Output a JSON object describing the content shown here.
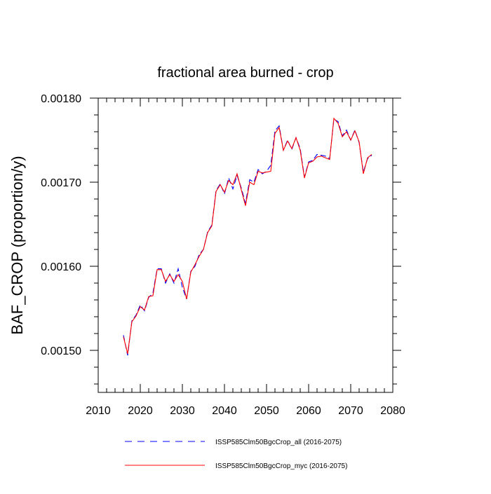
{
  "chart_data": {
    "type": "line",
    "title": "fractional area burned - crop",
    "ylabel": "BAF_CROP  (proportion/y)",
    "xlabel": "",
    "xlim": [
      2010,
      2080
    ],
    "ylim": [
      0.00145,
      0.0018
    ],
    "x_ticks": [
      2010,
      2020,
      2030,
      2040,
      2050,
      2060,
      2070,
      2080
    ],
    "x_tick_labels": [
      "2010",
      "2020",
      "2030",
      "2040",
      "2050",
      "2060",
      "2070",
      "2080"
    ],
    "y_ticks": [
      0.0015,
      0.0016,
      0.0017,
      0.0018
    ],
    "y_tick_labels": [
      "0.00150",
      "0.00160",
      "0.00170",
      "0.00180"
    ],
    "grid": false,
    "legend_position": "bottom",
    "x": [
      2016,
      2017,
      2018,
      2019,
      2020,
      2021,
      2022,
      2023,
      2024,
      2025,
      2026,
      2027,
      2028,
      2029,
      2030,
      2031,
      2032,
      2033,
      2034,
      2035,
      2036,
      2037,
      2038,
      2039,
      2040,
      2041,
      2042,
      2043,
      2044,
      2045,
      2046,
      2047,
      2048,
      2049,
      2050,
      2051,
      2052,
      2053,
      2054,
      2055,
      2056,
      2057,
      2058,
      2059,
      2060,
      2061,
      2062,
      2063,
      2064,
      2065,
      2066,
      2067,
      2068,
      2069,
      2070,
      2071,
      2072,
      2073,
      2074,
      2075
    ],
    "series": [
      {
        "name": "ISSP585Clm50BgcCrop_all (2016-2075)",
        "color": "#0000ff",
        "dash": "dashed",
        "values": [
          0.001518,
          0.001494,
          0.001535,
          0.001542,
          0.001554,
          0.001547,
          0.001563,
          0.001568,
          0.001597,
          0.001597,
          0.00158,
          0.001591,
          0.00158,
          0.001597,
          0.001575,
          0.001561,
          0.001594,
          0.0016,
          0.001614,
          0.00162,
          0.001641,
          0.001649,
          0.00169,
          0.001698,
          0.001686,
          0.001705,
          0.001692,
          0.001708,
          0.001693,
          0.001675,
          0.001703,
          0.0017,
          0.001715,
          0.00171,
          0.001713,
          0.00172,
          0.001761,
          0.001767,
          0.001738,
          0.00175,
          0.001739,
          0.001753,
          0.00174,
          0.001706,
          0.001724,
          0.001726,
          0.001733,
          0.001732,
          0.001731,
          0.001728,
          0.001775,
          0.001772,
          0.001755,
          0.001762,
          0.00175,
          0.001762,
          0.001747,
          0.001712,
          0.001728,
          0.001732
        ]
      },
      {
        "name": "ISSP585Clm50BgcCrop_myc (2016-2075)",
        "color": "#ff0000",
        "dash": "solid",
        "values": [
          0.001516,
          0.001496,
          0.001534,
          0.001541,
          0.001552,
          0.001548,
          0.001564,
          0.001565,
          0.001596,
          0.001596,
          0.001582,
          0.00159,
          0.001582,
          0.00159,
          0.001582,
          0.001561,
          0.001593,
          0.001602,
          0.001612,
          0.00162,
          0.00164,
          0.001648,
          0.001689,
          0.001697,
          0.001688,
          0.001702,
          0.001697,
          0.00171,
          0.001691,
          0.001672,
          0.0017,
          0.001697,
          0.001713,
          0.001711,
          0.001712,
          0.001713,
          0.001758,
          0.001765,
          0.001738,
          0.001749,
          0.00174,
          0.001753,
          0.001738,
          0.001705,
          0.001723,
          0.001725,
          0.00173,
          0.001731,
          0.001729,
          0.001727,
          0.001776,
          0.00177,
          0.001754,
          0.00176,
          0.00175,
          0.001761,
          0.001748,
          0.00171,
          0.001729,
          0.001733
        ]
      }
    ]
  }
}
